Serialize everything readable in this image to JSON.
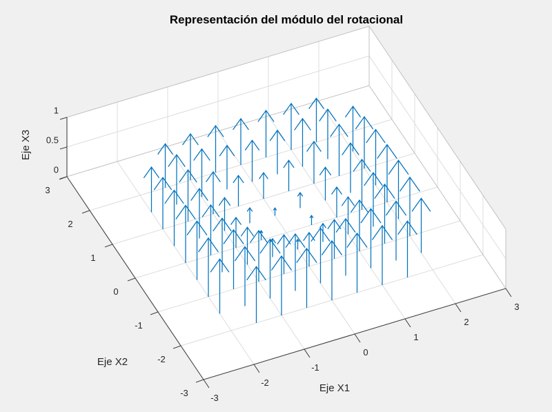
{
  "figure": {
    "title": "Representación del módulo del rotacional",
    "background": "#f0f0f0",
    "wall_color": "#ffffff"
  },
  "colors": {
    "arrow": "#0072BD",
    "axis_line": "#424242",
    "grid_line": "#dcdcdc",
    "box_edge": "#c0c0c0",
    "text": "#262626",
    "title_text": "#000000"
  },
  "axes": {
    "x": {
      "label": "Eje X1",
      "range": [
        -3,
        3
      ],
      "ticks": [
        -3,
        -2,
        -1,
        0,
        1,
        2,
        3
      ]
    },
    "y": {
      "label": "Eje X2",
      "range": [
        -3,
        3
      ],
      "ticks": [
        3,
        2,
        1,
        0,
        -1,
        -2,
        -3
      ]
    },
    "z": {
      "label": "Eje X3",
      "range": [
        0,
        1
      ],
      "ticks": [
        0,
        0.5,
        1
      ]
    }
  },
  "chart_data": {
    "type": "quiver3",
    "title": "Representación del módulo del rotacional",
    "xlabel": "Eje X1",
    "ylabel": "Eje X2",
    "zlabel": "Eje X3",
    "xlim": [
      -3,
      3
    ],
    "ylim": [
      -3,
      3
    ],
    "zlim": [
      0,
      1
    ],
    "grid": true,
    "view": {
      "azimuth": -37.5,
      "elevation": 30
    },
    "arrow_direction": "+z",
    "arrow_color": "#0072BD",
    "x1_grid": [
      -2,
      -1.5,
      -1,
      -0.5,
      0,
      0.5,
      1,
      1.5,
      2
    ],
    "x2_grid": [
      -2,
      -1.5,
      -1,
      -0.5,
      0,
      0.5,
      1,
      1.5,
      2
    ],
    "magnitudes": [
      [
        null,
        0.95,
        1.0,
        1.0,
        1.0,
        1.0,
        1.0,
        0.95,
        null
      ],
      [
        0.92,
        1.0,
        1.0,
        0.96,
        0.93,
        0.96,
        1.0,
        1.0,
        0.92
      ],
      [
        0.99,
        1.0,
        0.86,
        0.66,
        0.57,
        0.66,
        0.86,
        1.0,
        0.99
      ],
      [
        0.99,
        0.91,
        0.63,
        0.31,
        0.17,
        0.31,
        0.63,
        0.91,
        0.99
      ],
      [
        0.97,
        0.85,
        0.51,
        0.16,
        null,
        0.16,
        0.51,
        0.85,
        0.97
      ],
      [
        0.94,
        0.84,
        0.56,
        0.26,
        0.13,
        0.26,
        0.56,
        0.84,
        0.94
      ],
      [
        0.87,
        0.87,
        0.71,
        0.52,
        0.44,
        0.52,
        0.71,
        0.87,
        0.87
      ],
      [
        0.76,
        0.84,
        0.81,
        0.74,
        0.7,
        0.74,
        0.81,
        0.84,
        0.76
      ],
      [
        null,
        0.74,
        0.78,
        0.79,
        0.78,
        0.79,
        0.78,
        0.74,
        null
      ]
    ]
  }
}
